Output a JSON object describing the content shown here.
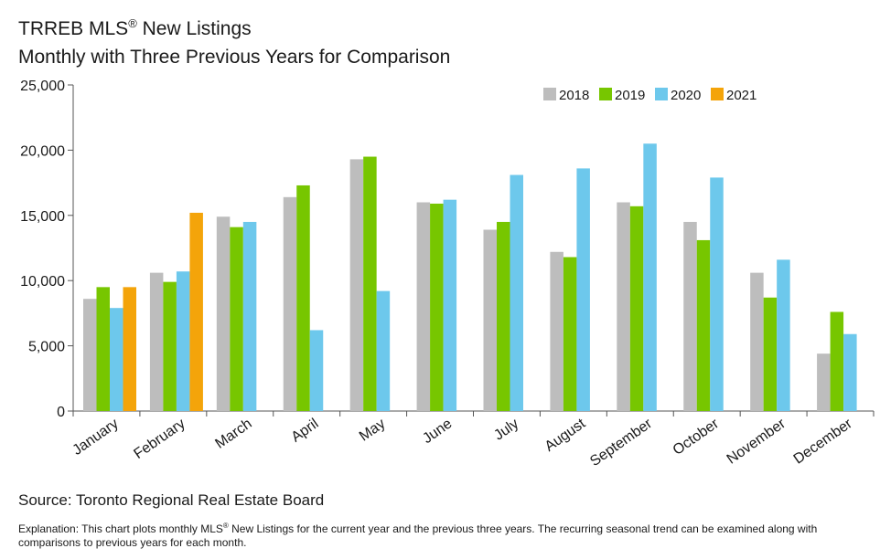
{
  "header": {
    "title_prefix": "TRREB MLS",
    "title_reg": "®",
    "title_suffix": " New Listings",
    "subtitle": "Monthly with Three Previous Years for Comparison"
  },
  "footer": {
    "source": "Source: Toronto Regional Real Estate Board",
    "explanation_prefix": "Explanation: This chart plots monthly MLS",
    "explanation_reg": "®",
    "explanation_suffix": " New Listings for the current year and the previous three years. The recurring seasonal trend can be examined along with comparisons to previous years for each month."
  },
  "chart_data": {
    "type": "bar",
    "title": "TRREB MLS® New Listings",
    "subtitle": "Monthly with Three Previous Years for Comparison",
    "categories": [
      "January",
      "February",
      "March",
      "April",
      "May",
      "June",
      "July",
      "August",
      "September",
      "October",
      "November",
      "December"
    ],
    "ylim": [
      0,
      25000
    ],
    "yticks": [
      0,
      5000,
      10000,
      15000,
      20000,
      25000
    ],
    "ytick_labels": [
      "0",
      "5,000",
      "10,000",
      "15,000",
      "20,000",
      "25,000"
    ],
    "grid": false,
    "legend_position": "top-right",
    "series": [
      {
        "name": "2018",
        "color": "#bdbdbd",
        "values": [
          8600,
          10600,
          14900,
          16400,
          19300,
          16000,
          13900,
          12200,
          16000,
          14500,
          10600,
          4400
        ]
      },
      {
        "name": "2019",
        "color": "#77c600",
        "values": [
          9500,
          9900,
          14100,
          17300,
          19500,
          15900,
          14500,
          11800,
          15700,
          13100,
          8700,
          7600
        ]
      },
      {
        "name": "2020",
        "color": "#6dc8ec",
        "values": [
          7900,
          10700,
          14500,
          6200,
          9200,
          16200,
          18100,
          18600,
          20500,
          17900,
          11600,
          5900
        ]
      },
      {
        "name": "2021",
        "color": "#f4a40a",
        "values": [
          9500,
          15200,
          null,
          null,
          null,
          null,
          null,
          null,
          null,
          null,
          null,
          null
        ]
      }
    ]
  }
}
